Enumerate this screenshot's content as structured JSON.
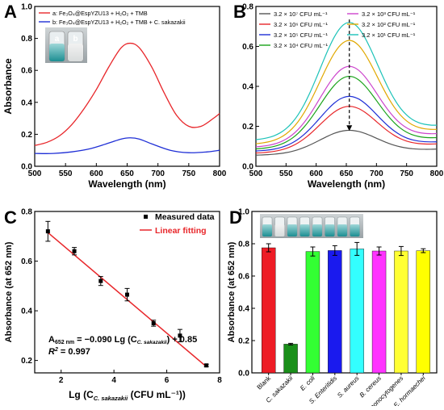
{
  "chart_data": [
    {
      "panel": "A",
      "type": "line",
      "xlabel": "Wavelength (nm)",
      "ylabel": "Absorbance",
      "xlim": [
        500,
        800
      ],
      "ylim": [
        0,
        1.0
      ],
      "xticks": [
        500,
        550,
        600,
        650,
        700,
        750,
        800
      ],
      "yticks": [
        0.0,
        0.2,
        0.4,
        0.6,
        0.8,
        1.0
      ],
      "legend_position": "top-left",
      "inset_labels": [
        "a",
        "b"
      ],
      "series": [
        {
          "name": "a: Fe₃O₄@EspYZU13 + H₂O₂ + TMB",
          "color": "#e8262a",
          "x": [
            500,
            520,
            540,
            560,
            580,
            600,
            620,
            640,
            655,
            670,
            690,
            710,
            730,
            750,
            770,
            790,
            800
          ],
          "y": [
            0.13,
            0.15,
            0.19,
            0.26,
            0.36,
            0.48,
            0.62,
            0.74,
            0.77,
            0.74,
            0.62,
            0.46,
            0.32,
            0.25,
            0.25,
            0.3,
            0.33
          ]
        },
        {
          "name": "b: Fe₃O₄@EspYZU13 + H₂O₂ + TMB + C. sakazakii",
          "color": "#1f2fd6",
          "x": [
            500,
            530,
            560,
            590,
            620,
            640,
            655,
            670,
            690,
            720,
            750,
            780,
            800
          ],
          "y": [
            0.08,
            0.08,
            0.09,
            0.11,
            0.145,
            0.17,
            0.178,
            0.17,
            0.14,
            0.1,
            0.085,
            0.09,
            0.1
          ]
        }
      ]
    },
    {
      "panel": "B",
      "type": "line",
      "xlabel": "Wavelength (nm)",
      "ylabel": "",
      "xlim": [
        500,
        800
      ],
      "ylim": [
        0,
        0.8
      ],
      "xticks": [
        500,
        550,
        600,
        650,
        700,
        750,
        800
      ],
      "yticks": [
        0.0,
        0.2,
        0.4,
        0.6,
        0.8
      ],
      "legend_position": "top",
      "series": [
        {
          "name": "3.2 × 10⁷ CFU mL⁻¹",
          "color": "#555555",
          "baseline": 0.055,
          "peak": 0.18,
          "tail": 0.085
        },
        {
          "name": "3.2 × 10⁶ CFU mL⁻¹",
          "color": "#e8262a",
          "baseline": 0.065,
          "peak": 0.3,
          "tail": 0.11
        },
        {
          "name": "3.2 × 10⁵ CFU mL⁻¹",
          "color": "#1f2fd6",
          "baseline": 0.075,
          "peak": 0.35,
          "tail": 0.12
        },
        {
          "name": "3.2 × 10⁴ CFU mL⁻¹",
          "color": "#1aa31a",
          "baseline": 0.085,
          "peak": 0.45,
          "tail": 0.14
        },
        {
          "name": "3.2 × 10³ CFU mL⁻¹",
          "color": "#cc44cc",
          "baseline": 0.095,
          "peak": 0.5,
          "tail": 0.16
        },
        {
          "name": "3.2 × 10² CFU mL⁻¹",
          "color": "#e0a800",
          "baseline": 0.11,
          "peak": 0.63,
          "tail": 0.18
        },
        {
          "name": "3.2 × 10¹ CFU mL⁻¹",
          "color": "#1bc2b8",
          "baseline": 0.13,
          "peak": 0.72,
          "tail": 0.2
        }
      ]
    },
    {
      "panel": "C",
      "type": "scatter",
      "xlabel": "Lg (C",
      "xlabel_sub": "C. sakazakii",
      "xlabel_tail": " (CFU mL⁻¹))",
      "ylabel": "Absorbance (at 652 nm)",
      "xlim": [
        1,
        8
      ],
      "ylim": [
        0.15,
        0.8
      ],
      "xticks": [
        2,
        4,
        6,
        8
      ],
      "yticks": [
        0.2,
        0.4,
        0.6,
        0.8
      ],
      "legend": [
        "Measured data",
        "Linear fitting"
      ],
      "legend_position": "top-right",
      "points": {
        "x": [
          1.5,
          2.5,
          3.5,
          4.5,
          5.5,
          6.5,
          7.5
        ],
        "y": [
          0.72,
          0.64,
          0.52,
          0.465,
          0.35,
          0.3,
          0.18
        ],
        "err": [
          0.04,
          0.015,
          0.018,
          0.025,
          0.012,
          0.025,
          0.005
        ]
      },
      "fit": {
        "slope": -0.09,
        "intercept": 0.85,
        "x": [
          1.5,
          7.5
        ]
      },
      "equation": {
        "lhs": "A",
        "lhs_sub": "652 nm",
        "mid": " = −0.090 Lg (C",
        "mid_sub": "C. sakazakii",
        "rhs": ") + 0.85",
        "r2_label": "R",
        "r2_sup": "2",
        "r2_value": " = 0.997"
      }
    },
    {
      "panel": "D",
      "type": "bar",
      "ylabel": "Absorbance (at 652 nm)",
      "ylim": [
        0,
        1.0
      ],
      "yticks": [
        0.0,
        0.2,
        0.4,
        0.6,
        0.8,
        1.0
      ],
      "categories": [
        "Blank",
        "C. sakazakii",
        "E. coli",
        "S. Enteritidis",
        "S. aureus",
        "B. cereus",
        "L. monocytogenes",
        "E. hormaechei"
      ],
      "values": [
        0.775,
        0.178,
        0.752,
        0.758,
        0.768,
        0.755,
        0.755,
        0.757
      ],
      "errors": [
        0.025,
        0.005,
        0.028,
        0.03,
        0.04,
        0.025,
        0.028,
        0.012
      ],
      "colors": [
        "#ee1c25",
        "#1a8f1a",
        "#33ff33",
        "#1a1aee",
        "#33ffff",
        "#ff33ff",
        "#ffff33",
        "#ffff00"
      ]
    }
  ],
  "panel_letters": [
    "A",
    "B",
    "C",
    "D"
  ]
}
